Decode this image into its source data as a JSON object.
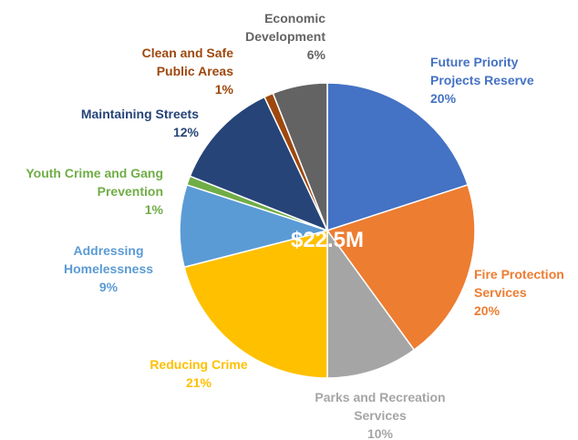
{
  "chart_data": {
    "type": "pie",
    "center_label": "$22.5M",
    "categories": [
      "Future Priority Projects Reserve",
      "Fire Protection Services",
      "Parks and Recreation Services",
      "Reducing Crime",
      "Addressing Homelessness",
      "Youth Crime and Gang Prevention",
      "Maintaining Streets",
      "Clean and Safe Public Areas",
      "Economic Development"
    ],
    "values": [
      20,
      20,
      10,
      21,
      9,
      1,
      12,
      1,
      6
    ],
    "value_labels": [
      "20%",
      "20%",
      "10%",
      "21%",
      "9%",
      "1%",
      "12%",
      "1%",
      "6%"
    ],
    "colors": [
      "#4472c4",
      "#ed7d31",
      "#a5a5a5",
      "#ffc000",
      "#5b9bd5",
      "#70ad47",
      "#264478",
      "#9e480e",
      "#636363"
    ]
  }
}
